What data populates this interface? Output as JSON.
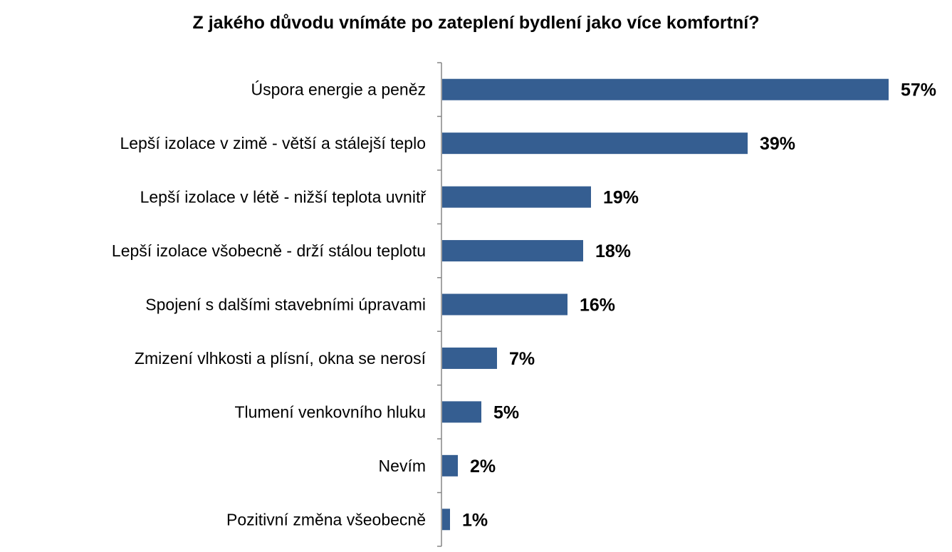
{
  "chart_data": {
    "type": "bar",
    "orientation": "horizontal",
    "title": "Z jakého důvodu vnímáte po zateplení bydlení jako více komfortní?",
    "categories": [
      "Úspora energie a peněz",
      "Lepší izolace v zimě - větší a stálejší teplo",
      "Lepší izolace v létě - nižší teplota uvnitř",
      "Lepší izolace všobecně - drží stálou teplotu",
      "Spojení s dalšími stavebními úpravami",
      "Zmizení vlhkosti a plísní, okna se nerosí",
      "Tlumení venkovního hluku",
      "Nevím",
      "Pozitivní změna všeobecně"
    ],
    "values": [
      57,
      39,
      19,
      18,
      16,
      7,
      5,
      2,
      1
    ],
    "value_labels": [
      "57%",
      "39%",
      "19%",
      "18%",
      "16%",
      "7%",
      "5%",
      "2%",
      "1%"
    ],
    "xlim": [
      0,
      57
    ],
    "grid": false,
    "legend": "none",
    "bar_color": "#355E91",
    "axis_color": "#868686"
  }
}
